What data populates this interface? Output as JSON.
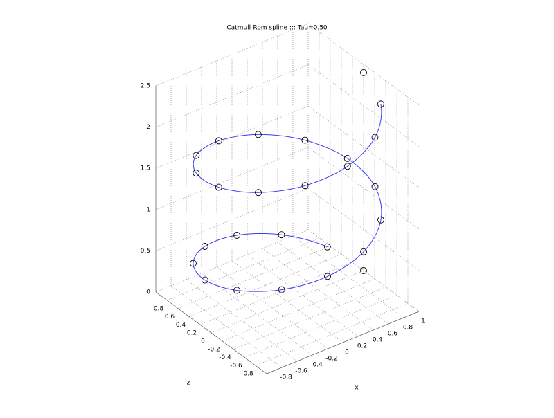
{
  "chart_data": {
    "type": "line3d",
    "title": "Catmull-Rom spline ::: Tau=0.50",
    "xlabel": "x",
    "zlabel": "z",
    "tau": 0.5,
    "color": "#3b3bf5",
    "marker_color": "#000000",
    "grid": true,
    "x": [
      1,
      0.876,
      0.536,
      0.063,
      -0.426,
      -0.809,
      -0.992,
      -0.93,
      -0.637,
      -0.187,
      0.309,
      0.729,
      0.969,
      0.969,
      0.729,
      0.309,
      -0.187,
      -0.637,
      -0.93,
      -0.992,
      -0.809,
      -0.426,
      0.063,
      0.536,
      0.876,
      1
    ],
    "z": [
      0,
      0.482,
      0.844,
      0.998,
      0.905,
      0.588,
      0.125,
      -0.368,
      -0.771,
      -0.982,
      -0.951,
      -0.685,
      -0.249,
      0.249,
      0.685,
      0.951,
      0.982,
      0.771,
      0.368,
      -0.125,
      -0.588,
      -0.905,
      -0.998,
      -0.844,
      -0.482,
      0
    ],
    "y": [
      0,
      0.096,
      0.192,
      0.288,
      0.384,
      0.48,
      0.576,
      0.672,
      0.768,
      0.864,
      0.96,
      1.056,
      1.152,
      1.248,
      1.344,
      1.44,
      1.536,
      1.632,
      1.728,
      1.824,
      1.92,
      2.016,
      2.112,
      2.208,
      2.304,
      2.4
    ],
    "xlim": [
      -1,
      1
    ],
    "zlim": [
      -1,
      1
    ],
    "ylim": [
      0,
      2.5
    ],
    "xticks": [
      -0.8,
      -0.6,
      -0.4,
      -0.2,
      0,
      0.2,
      0.4,
      0.6,
      0.8,
      1
    ],
    "zticks": [
      0.8,
      0.6,
      0.4,
      0.2,
      0,
      -0.2,
      -0.4,
      -0.6,
      -0.8
    ],
    "yticks": [
      0,
      0.5,
      1,
      1.5,
      2,
      2.5
    ]
  }
}
